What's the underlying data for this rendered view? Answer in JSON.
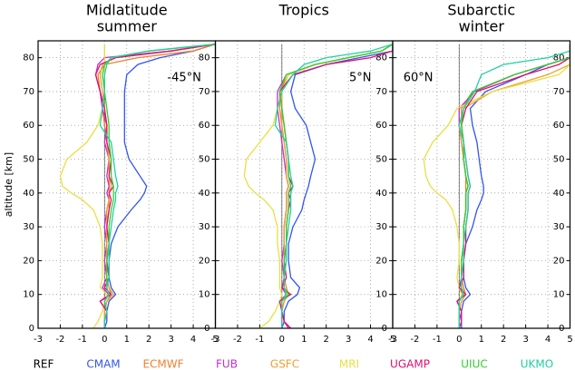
{
  "chart_data": [
    {
      "type": "line",
      "title": [
        "Midlatitude",
        "summer"
      ],
      "annotation": "-45°N",
      "ylabel": "altitude [km]",
      "y": [
        0,
        2,
        5,
        8,
        10,
        12,
        15,
        20,
        25,
        30,
        35,
        38,
        40,
        42,
        45,
        50,
        55,
        60,
        65,
        70,
        75,
        78,
        80,
        82,
        84
      ],
      "xlim": [
        -3,
        5
      ],
      "ylim": [
        0,
        85
      ],
      "xticks": [
        -3,
        -2,
        -1,
        0,
        1,
        2,
        3,
        4,
        5
      ],
      "yticks": [
        0,
        10,
        20,
        30,
        40,
        50,
        60,
        70,
        80
      ],
      "grid": true,
      "series": [
        {
          "name": "REF",
          "color": "#000000",
          "values": [
            0,
            0,
            0,
            0,
            0,
            0,
            0,
            0,
            0,
            0,
            0,
            0,
            0,
            0,
            0,
            0,
            0,
            0,
            0,
            0,
            0,
            0,
            0,
            0,
            0
          ]
        },
        {
          "name": "CMAM",
          "color": "#3355ee",
          "values": [
            0,
            0.1,
            0.1,
            0.2,
            0.5,
            0.3,
            0.2,
            0.2,
            0.3,
            0.6,
            1.2,
            1.6,
            1.8,
            1.9,
            1.6,
            1.1,
            0.9,
            0.9,
            0.9,
            0.9,
            1.0,
            1.5,
            2.5,
            4,
            5
          ]
        },
        {
          "name": "ECMWF",
          "color": "#f08030",
          "values": [
            0,
            0,
            0,
            0.1,
            0.3,
            0.2,
            0.1,
            0.1,
            0.1,
            0.1,
            0.2,
            0.2,
            0.2,
            0.2,
            0.2,
            0.2,
            0.1,
            0,
            -0.1,
            -0.2,
            -0.3,
            0,
            1.5,
            4,
            5
          ]
        },
        {
          "name": "FUB",
          "color": "#c030d0",
          "values": [
            0,
            0,
            0.1,
            -0.2,
            0.2,
            -0.1,
            0.1,
            0,
            0.1,
            0,
            0.1,
            0.2,
            0.1,
            0.2,
            0.1,
            0.2,
            0,
            0.1,
            -0.1,
            -0.2,
            -0.4,
            -0.3,
            0,
            3,
            5
          ]
        },
        {
          "name": "GSFC",
          "color": "#f0a030",
          "values": [
            0,
            0,
            0,
            0.1,
            0.4,
            0.2,
            0.1,
            0.1,
            0.1,
            0.1,
            0.1,
            0.2,
            0.2,
            0.3,
            0.2,
            0.2,
            0.1,
            0.1,
            0,
            -0.1,
            -0.2,
            -0.1,
            0.5,
            3,
            5
          ]
        },
        {
          "name": "MRI",
          "color": "#e8e040",
          "values": [
            -0.5,
            -0.3,
            -0.1,
            0,
            0.1,
            -0.2,
            -0.1,
            -0.1,
            -0.1,
            -0.2,
            -0.5,
            -1,
            -1.5,
            -1.9,
            -2,
            -1.7,
            -0.8,
            -0.3,
            -0.1,
            0,
            0,
            0,
            0,
            0,
            0
          ]
        },
        {
          "name": "UGAMP",
          "color": "#e01070",
          "values": [
            0,
            0,
            0.1,
            -0.2,
            0.3,
            0,
            0.2,
            0.1,
            0.2,
            0.1,
            0.2,
            0.3,
            0.2,
            0.4,
            0.2,
            0.3,
            0.1,
            0.1,
            0,
            -0.2,
            -0.4,
            -0.2,
            0.5,
            3,
            5
          ]
        },
        {
          "name": "UIUC",
          "color": "#30d030",
          "values": [
            0,
            0,
            0.1,
            0,
            0.2,
            0.1,
            0.1,
            0.1,
            0.2,
            0.2,
            0.3,
            0.4,
            0.4,
            0.4,
            0.3,
            0.3,
            0.2,
            0.2,
            0.1,
            0,
            -0.1,
            0,
            0.3,
            2,
            5
          ]
        },
        {
          "name": "UKMO",
          "color": "#20d0a0",
          "values": [
            0,
            0,
            0.1,
            0,
            0.2,
            0.1,
            0.2,
            0.2,
            0.2,
            0.3,
            0.4,
            0.5,
            0.5,
            0.6,
            0.5,
            0.4,
            0.3,
            -0.2,
            -0.1,
            0,
            0,
            0.1,
            0.3,
            2,
            5
          ]
        }
      ]
    },
    {
      "type": "line",
      "title": [
        "Tropics"
      ],
      "annotation": "5°N",
      "y": [
        0,
        2,
        5,
        8,
        10,
        12,
        15,
        20,
        25,
        30,
        35,
        38,
        40,
        42,
        45,
        50,
        55,
        60,
        65,
        70,
        75,
        78,
        80,
        82,
        84
      ],
      "xlim": [
        -3,
        5
      ],
      "ylim": [
        0,
        85
      ],
      "xticks": [
        -3,
        -2,
        -1,
        0,
        1,
        2,
        3,
        4,
        5
      ],
      "yticks": [
        0,
        10,
        20,
        30,
        40,
        50,
        60,
        70,
        80
      ],
      "grid": true,
      "series": [
        {
          "values": [
            0,
            0,
            0,
            0,
            0,
            0,
            0,
            0,
            0,
            0,
            0,
            0,
            0,
            0,
            0,
            0,
            0,
            0,
            0,
            0,
            0,
            0,
            0,
            0,
            0
          ]
        },
        {
          "values": [
            0,
            0.1,
            0.1,
            0.3,
            0.7,
            0.8,
            0.4,
            0.3,
            0.3,
            0.5,
            0.9,
            1.0,
            1.1,
            1.2,
            1.3,
            1.5,
            1.3,
            1.1,
            0.6,
            0.4,
            0.6,
            2,
            3.5,
            5,
            5
          ]
        },
        {
          "values": [
            0,
            0,
            0,
            0.1,
            0.3,
            0.2,
            0.1,
            0.1,
            0.1,
            0.1,
            0.2,
            0.2,
            0.2,
            0.3,
            0.2,
            0.2,
            0.1,
            0,
            -0.1,
            -0.1,
            0.3,
            1.5,
            3,
            4.5,
            5
          ]
        },
        {
          "values": [
            0.3,
            0.1,
            0,
            -0.1,
            0.2,
            0,
            0.1,
            0,
            0.1,
            0.1,
            0.2,
            0.2,
            0.2,
            0.3,
            0.2,
            0.1,
            0,
            -0.1,
            -0.2,
            -0.2,
            0.2,
            1.5,
            3,
            4.5,
            5
          ]
        },
        {
          "values": [
            0,
            0,
            0,
            0.1,
            0.3,
            0.1,
            0.1,
            0.1,
            0.1,
            0.1,
            0.2,
            0.2,
            0.2,
            0.3,
            0.2,
            0.2,
            0.1,
            0,
            0,
            0,
            0.3,
            1.5,
            3,
            4.5,
            5
          ]
        },
        {
          "values": [
            -1,
            -0.6,
            -0.3,
            -0.1,
            0,
            -0.1,
            -0.1,
            -0.1,
            -0.2,
            -0.2,
            -0.4,
            -0.8,
            -1.2,
            -1.5,
            -1.7,
            -1.6,
            -1,
            -0.4,
            -0.2,
            0,
            0.3,
            1.5,
            3,
            4.5,
            5
          ]
        },
        {
          "values": [
            0.4,
            0.1,
            0,
            -0.1,
            0.4,
            0,
            0.2,
            0.1,
            0.2,
            0.2,
            0.3,
            0.4,
            0.3,
            0.5,
            0.3,
            0.3,
            0.2,
            0.1,
            0,
            -0.1,
            0.5,
            2,
            4,
            5,
            5
          ]
        },
        {
          "values": [
            0,
            0,
            0,
            0,
            0.3,
            0.1,
            0.1,
            0.1,
            0.2,
            0.2,
            0.3,
            0.3,
            0.3,
            0.4,
            0.3,
            0.3,
            0.2,
            0.1,
            0,
            -0.1,
            0.2,
            1.5,
            3,
            4.5,
            5
          ]
        },
        {
          "values": [
            0,
            0,
            0,
            0,
            0.2,
            0.1,
            0.1,
            0.2,
            0.2,
            0.3,
            0.4,
            0.4,
            0.4,
            0.5,
            0.4,
            0.3,
            0.2,
            -0.3,
            -0.2,
            0,
            0.5,
            1,
            2,
            4,
            5
          ]
        }
      ]
    },
    {
      "type": "line",
      "title": [
        "Subarctic",
        "winter"
      ],
      "annotation": "60°N",
      "y": [
        0,
        2,
        5,
        8,
        10,
        12,
        15,
        20,
        25,
        30,
        35,
        38,
        40,
        42,
        45,
        50,
        55,
        60,
        65,
        70,
        75,
        78,
        80,
        82,
        84
      ],
      "xlim": [
        -3,
        5
      ],
      "ylim": [
        0,
        85
      ],
      "xticks": [
        -3,
        -2,
        -1,
        0,
        1,
        2,
        3,
        4,
        5
      ],
      "yticks": [
        0,
        10,
        20,
        30,
        40,
        50,
        60,
        70,
        80
      ],
      "grid": true,
      "series": [
        {
          "values": [
            0,
            0,
            0,
            0,
            0,
            0,
            0,
            0,
            0,
            0,
            0,
            0,
            0,
            0,
            0,
            0,
            0,
            0,
            0,
            0,
            0,
            0,
            0,
            0,
            0
          ]
        },
        {
          "values": [
            0.1,
            0.1,
            0.1,
            0.2,
            0.5,
            0.3,
            0.2,
            0.2,
            0.3,
            0.6,
            0.8,
            1.0,
            1.1,
            1.1,
            1.0,
            0.9,
            0.8,
            0.6,
            0.5,
            1.2,
            3,
            4,
            5,
            5,
            5
          ]
        },
        {
          "values": [
            0,
            0,
            0,
            0.1,
            0.3,
            0.2,
            0.1,
            0.1,
            0.2,
            0.2,
            0.3,
            0.3,
            0.3,
            0.3,
            0.3,
            0.2,
            0.2,
            0.1,
            0.1,
            0.6,
            2.5,
            4,
            5,
            5,
            5
          ]
        },
        {
          "values": [
            0,
            0,
            0.1,
            -0.1,
            0.2,
            0,
            0.1,
            0.1,
            0.2,
            0.2,
            0.3,
            0.3,
            0.3,
            0.4,
            0.3,
            0.2,
            0.1,
            0,
            0,
            0.7,
            2.5,
            4,
            5,
            5,
            5
          ]
        },
        {
          "values": [
            0,
            0,
            0,
            0.1,
            0.3,
            0.1,
            0.1,
            0.1,
            0.2,
            0.2,
            0.3,
            0.3,
            0.3,
            0.4,
            0.3,
            0.2,
            0.1,
            0,
            0.2,
            1.5,
            4,
            5,
            5,
            5,
            5
          ]
        },
        {
          "values": [
            0,
            0,
            0,
            0,
            0.1,
            0,
            -0.1,
            0,
            0,
            -0.1,
            -0.3,
            -0.6,
            -1,
            -1.3,
            -1.5,
            -1.6,
            -1.2,
            -0.5,
            -0.1,
            1.5,
            4.5,
            5,
            5,
            5,
            5
          ]
        },
        {
          "values": [
            0,
            0.1,
            0.1,
            -0.1,
            0.3,
            0,
            0.2,
            0.2,
            0.3,
            0.3,
            0.4,
            0.4,
            0.4,
            0.5,
            0.4,
            0.3,
            0.2,
            0.1,
            0.3,
            0.8,
            3,
            4.5,
            5,
            5,
            5
          ]
        },
        {
          "values": [
            0,
            0,
            0,
            0,
            0.2,
            0.1,
            0.1,
            0.1,
            0.2,
            0.2,
            0.3,
            0.3,
            0.3,
            0.4,
            0.3,
            0.2,
            0.2,
            0.1,
            0.2,
            0.6,
            2.5,
            4,
            5,
            5,
            5
          ]
        },
        {
          "values": [
            0,
            0,
            0,
            0,
            0.2,
            0.1,
            0.1,
            0.2,
            0.2,
            0.3,
            0.4,
            0.4,
            0.4,
            0.5,
            0.4,
            0.3,
            0.2,
            0,
            0.2,
            0.7,
            1,
            2,
            4,
            5,
            5
          ]
        }
      ]
    }
  ]
}
